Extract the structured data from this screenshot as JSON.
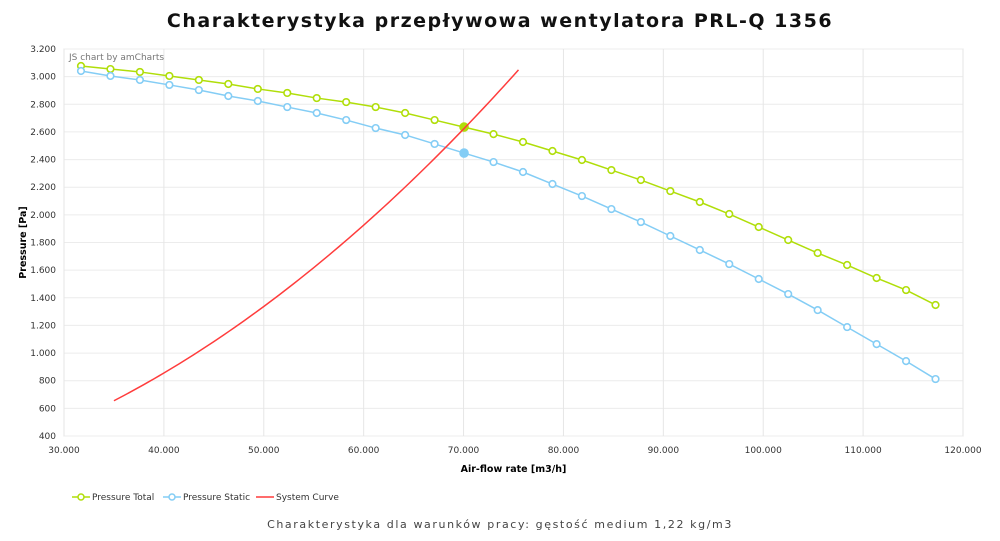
{
  "title": "Charakterystyka przepływowa wentylatora PRL-Q 1356",
  "subtitle": "Charakterystyka dla warunków pracy: gęstość medium 1,22 kg/m3",
  "credit": "JS chart by amCharts",
  "chart_data": {
    "type": "line",
    "title": "Charakterystyka przepływowa wentylatora PRL-Q 1356",
    "xlabel": "Air-flow rate [m3/h]",
    "ylabel": "Pressure [Pa]",
    "xlim": [
      30000,
      120000
    ],
    "ylim": [
      400,
      3200
    ],
    "xticks": [
      30000,
      40000,
      50000,
      60000,
      70000,
      80000,
      90000,
      100000,
      110000,
      120000
    ],
    "xtick_labels": [
      "30.000",
      "40.000",
      "50.000",
      "60.000",
      "70.000",
      "80.000",
      "90.000",
      "100.000",
      "110.000",
      "120.000"
    ],
    "yticks": [
      400,
      600,
      800,
      1000,
      1200,
      1400,
      1600,
      1800,
      2000,
      2200,
      2400,
      2600,
      2800,
      3000,
      3200
    ],
    "ytick_labels": [
      "400",
      "600",
      "800",
      "1.000",
      "1.200",
      "1.400",
      "1.600",
      "1.800",
      "2.000",
      "2.200",
      "2.400",
      "2.600",
      "2.800",
      "3.000",
      "3.200"
    ],
    "grid": true,
    "legend_position": "bottom-left",
    "x": [
      31700,
      34650,
      37600,
      40550,
      43500,
      46450,
      49400,
      52350,
      55300,
      58250,
      61200,
      64150,
      67100,
      70050,
      73000,
      75950,
      78900,
      81850,
      84800,
      87750,
      90700,
      93650,
      96600,
      99550,
      102500,
      105450,
      108400,
      111350,
      114300,
      117250
    ],
    "series": [
      {
        "name": "Pressure Total",
        "color": "#b0de09",
        "marker": "circle",
        "values": [
          3077,
          3055,
          3034,
          3005,
          2976,
          2947,
          2911,
          2882,
          2845,
          2816,
          2780,
          2737,
          2686,
          2635,
          2584,
          2527,
          2462,
          2397,
          2324,
          2252,
          2172,
          2093,
          2006,
          1912,
          1818,
          1724,
          1637,
          1543,
          1456,
          1348
        ],
        "highlight_index": 13
      },
      {
        "name": "Pressure Static",
        "color": "#84cdf5",
        "marker": "circle",
        "values": [
          3041,
          3005,
          2976,
          2940,
          2903,
          2860,
          2824,
          2780,
          2737,
          2686,
          2628,
          2578,
          2513,
          2447,
          2382,
          2310,
          2223,
          2136,
          2042,
          1948,
          1847,
          1746,
          1644,
          1536,
          1427,
          1311,
          1188,
          1065,
          942,
          812
        ],
        "highlight_index": 13
      },
      {
        "name": "System Curve",
        "color": "#ff3c3c",
        "marker": "none",
        "x": [
          35000,
          40000,
          45000,
          50000,
          55000,
          60000,
          65000,
          70000,
          75700
        ],
        "values": [
          660,
          860,
          1088,
          1343,
          1625,
          1934,
          2270,
          2632,
          3065
        ]
      }
    ]
  }
}
